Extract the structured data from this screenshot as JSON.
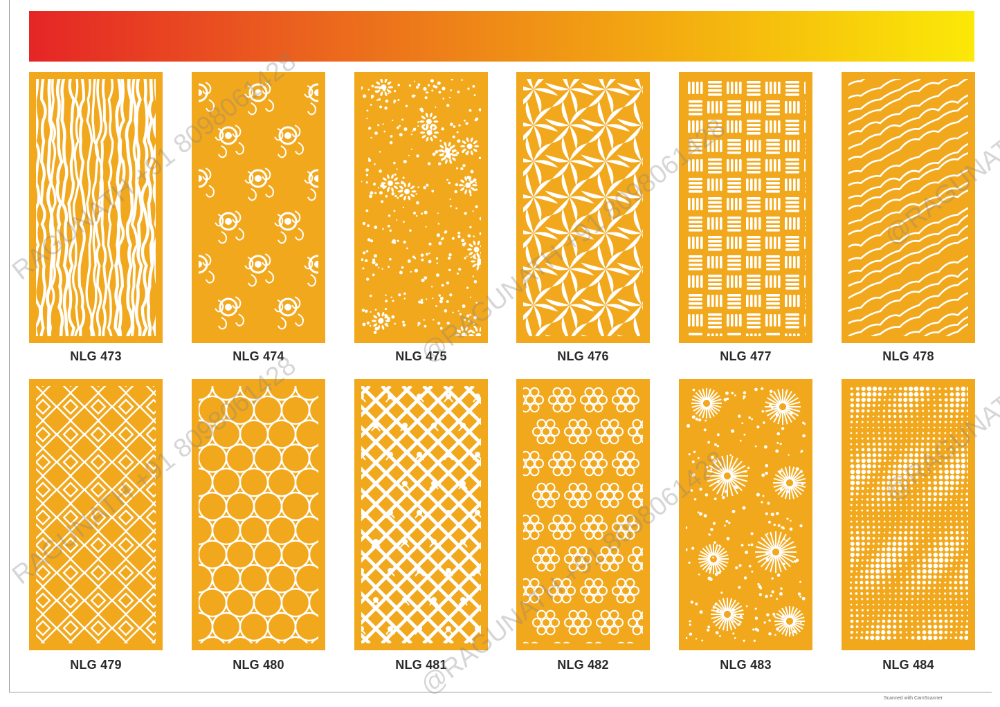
{
  "colors": {
    "panel": "#f2a81d",
    "cutout": "#ffffff",
    "gradient": [
      "#e52526",
      "#ea5a1f",
      "#ef8c17",
      "#f5b90e",
      "#fbe907"
    ]
  },
  "panels": [
    {
      "label": "NLG 473",
      "pattern": "wavy-strands"
    },
    {
      "label": "NLG 474",
      "pattern": "ring-scroll"
    },
    {
      "label": "NLG 475",
      "pattern": "dot-flowers"
    },
    {
      "label": "NLG 476",
      "pattern": "pinwheel-star"
    },
    {
      "label": "NLG 477",
      "pattern": "basketweave"
    },
    {
      "label": "NLG 478",
      "pattern": "leaf-waves"
    },
    {
      "label": "NLG 479",
      "pattern": "diamond-fret"
    },
    {
      "label": "NLG 480",
      "pattern": "star-lattice"
    },
    {
      "label": "NLG 481",
      "pattern": "diagonal-fleur"
    },
    {
      "label": "NLG 482",
      "pattern": "floral-lace"
    },
    {
      "label": "NLG 483",
      "pattern": "sunburst"
    },
    {
      "label": "NLG 484",
      "pattern": "dot-waves"
    }
  ],
  "watermark": {
    "left": "RAGUNATH +91 8098061428",
    "middle": "@RAGUNATH +91 8098061428",
    "right": "@RAGUNATH"
  },
  "footer": {
    "scanner_note": "Scanned with CamScanner"
  }
}
